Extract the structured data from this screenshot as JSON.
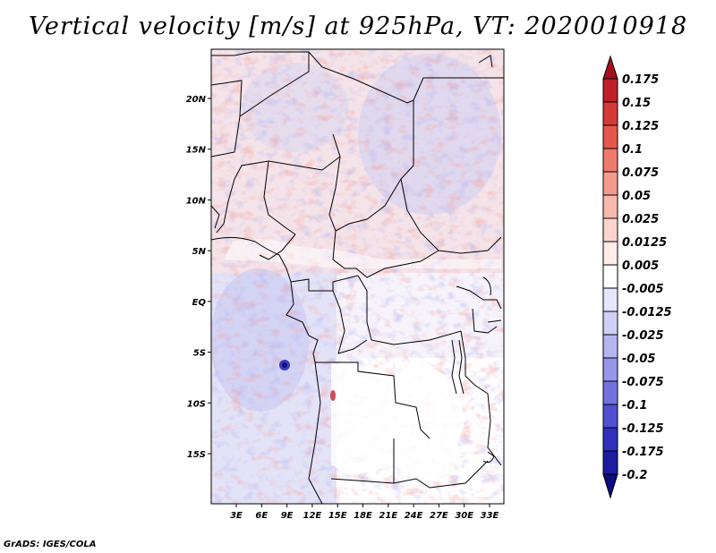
{
  "title": "Vertical velocity [m/s] at 925hPa, VT: 2020010918",
  "footer": "GrADS: IGES/COLA",
  "chart_data": {
    "type": "heatmap",
    "variable": "Vertical velocity",
    "units": "m/s",
    "level": "925hPa",
    "valid_time": "2020010918",
    "lon_range": [
      0,
      35
    ],
    "lat_range": [
      -20,
      25
    ],
    "x_ticks": [
      3,
      6,
      9,
      12,
      15,
      18,
      21,
      24,
      27,
      30,
      33
    ],
    "x_tick_labels": [
      "3E",
      "6E",
      "9E",
      "12E",
      "15E",
      "18E",
      "21E",
      "24E",
      "27E",
      "30E",
      "33E"
    ],
    "y_ticks": [
      20,
      15,
      10,
      5,
      0,
      -5,
      -10,
      -15
    ],
    "y_tick_labels": [
      "20N",
      "15N",
      "10N",
      "5N",
      "EQ",
      "5S",
      "10S",
      "15S"
    ],
    "colorbar": {
      "levels": [
        "0.175",
        "0.15",
        "0.125",
        "0.1",
        "0.075",
        "0.05",
        "0.025",
        "0.0125",
        "0.005",
        "-0.005",
        "-0.0125",
        "-0.025",
        "-0.05",
        "-0.075",
        "-0.1",
        "-0.125",
        "-0.175",
        "-0.2"
      ],
      "colors": [
        "#a50e1e",
        "#c0202a",
        "#d53a38",
        "#e5574d",
        "#ee7a6d",
        "#f49a8e",
        "#f8b8ae",
        "#fbd4cd",
        "#fdece8",
        "#ffffff",
        "#e6e6fb",
        "#cfcff7",
        "#b5b5f2",
        "#9696ea",
        "#7373df",
        "#5050d0",
        "#3030bd",
        "#1c1ca0",
        "#0d0d80"
      ]
    }
  }
}
